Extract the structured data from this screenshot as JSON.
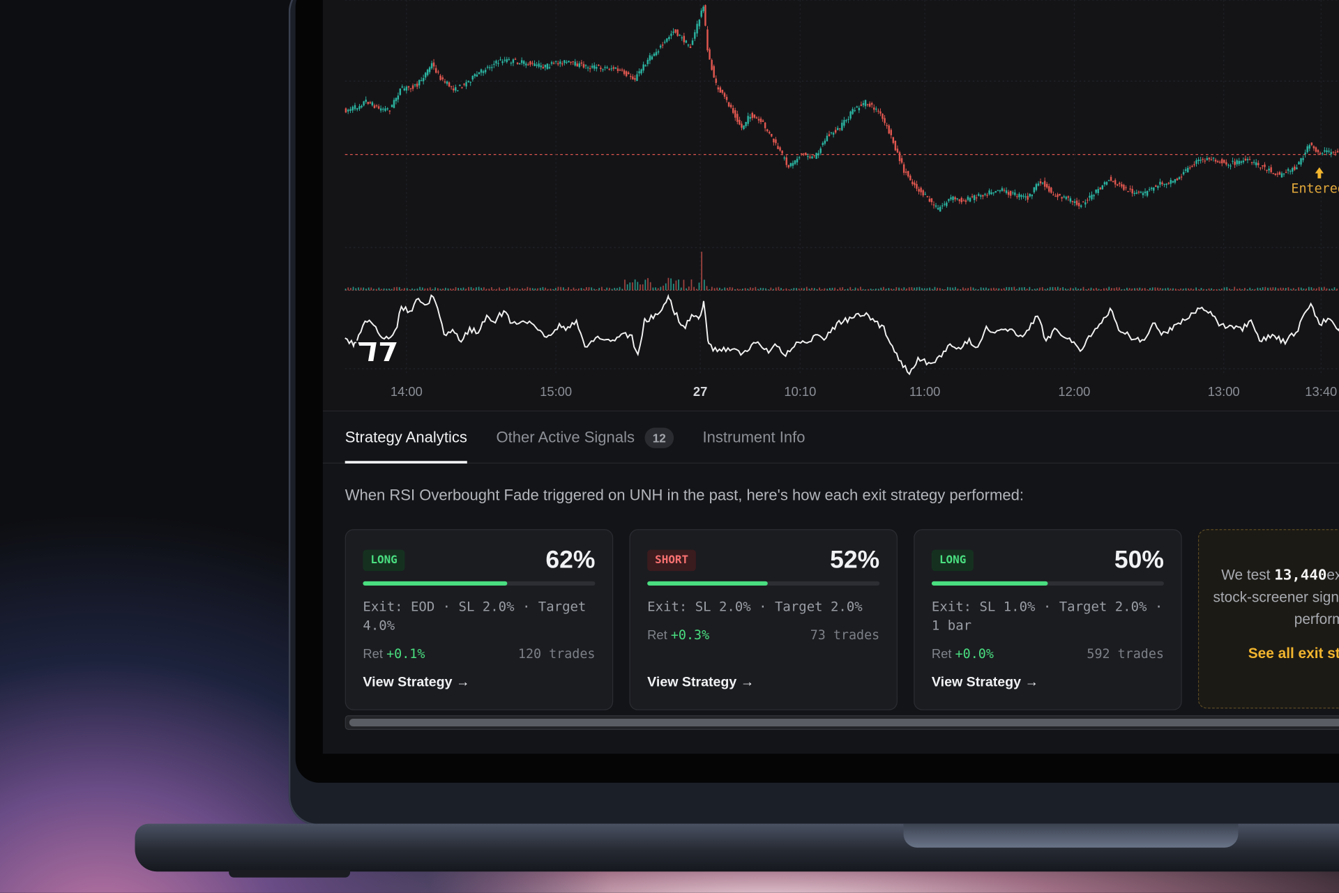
{
  "chart_panel": {
    "time_labels": [
      "14:00",
      "15:00",
      "27",
      "10:10",
      "11:00",
      "12:00",
      "13:00",
      "13:40"
    ],
    "marker_label": "Entered"
  },
  "tabs": [
    {
      "label": "Strategy Analytics"
    },
    {
      "label": "Other Active Signals",
      "badge": 12
    },
    {
      "label": "Instrument Info"
    }
  ],
  "description": "When RSI Overbought Fade triggered on UNH in the past, here's how each exit strategy performed:",
  "cards": [
    {
      "side": "LONG",
      "win_rate": {
        "value": 62,
        "label": "62%"
      },
      "exit": "Exit: EOD · SL 2.0% · Target 4.0%",
      "ret_label": "Ret",
      "ret": "+0.1%",
      "trades": "120 trades",
      "link": "View Strategy →"
    },
    {
      "side": "SHORT",
      "win_rate": {
        "value": 52,
        "label": "52%"
      },
      "exit": "Exit: SL 2.0% · Target 2.0%",
      "ret_label": "Ret",
      "ret": "+0.3%",
      "trades": "73 trades",
      "link": "View Strategy →"
    },
    {
      "side": "LONG",
      "win_rate": {
        "value": 50,
        "label": "50%"
      },
      "exit": "Exit: SL 1.0% · Target 2.0% · 1 bar",
      "ret_label": "Ret",
      "ret": "+0.0%",
      "trades": "592 trades",
      "link": "View Strategy →"
    }
  ],
  "promo": {
    "text_before": "We test",
    "count": "13,440",
    "text_after": "exit strategies per stock-screener signal, seeing the top performers.",
    "link": "See all exit strategies →"
  }
}
